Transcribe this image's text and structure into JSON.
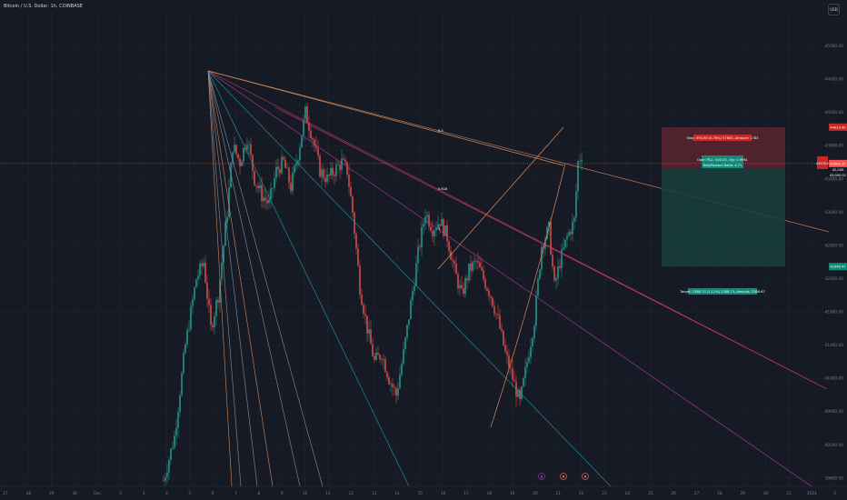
{
  "header": {
    "symbol_title": "Bitcoin / U.S. Dollar, 1h, COINBASE",
    "currency_button": "USD"
  },
  "colors": {
    "background": "#161a25",
    "up": "#26a69a",
    "down": "#ef5350",
    "grid": "#1f2431",
    "fan_gray": "#8a8f9c",
    "fan_teal": "#1ea3a8",
    "fan_orange": "#d98b56",
    "fan_pink": "#c2396b",
    "fan_magenta": "#b040a0",
    "stop_zone": "#5a2430",
    "target_zone": "#17403d"
  },
  "chart_data": {
    "type": "candlestick",
    "y_axis": {
      "range": [
        39700,
        45400
      ],
      "ticks": [
        "45000.00",
        "44600.00",
        "44200.00",
        "43800.00",
        "43400.00",
        "43000.00",
        "42600.00",
        "42200.00",
        "41800.00",
        "41400.00",
        "41000.00",
        "40600.00",
        "40200.00",
        "39800.00"
      ]
    },
    "x_axis": {
      "ticks": [
        "27",
        "28",
        "29",
        "30",
        "Dec",
        "2",
        "3",
        "4",
        "5",
        "6",
        "7",
        "8",
        "9",
        "10",
        "11",
        "12",
        "13",
        "14",
        "15",
        "16",
        "17",
        "18",
        "19",
        "20",
        "21",
        "22",
        "23",
        "24",
        "25",
        "26",
        "27",
        "28",
        "29",
        "30",
        "31",
        "2024",
        "2"
      ]
    },
    "price_path": [
      [
        0,
        39770
      ],
      [
        6,
        40300
      ],
      [
        12,
        41400
      ],
      [
        18,
        42200
      ],
      [
        22,
        42400
      ],
      [
        26,
        41600
      ],
      [
        30,
        42000
      ],
      [
        35,
        43000
      ],
      [
        38,
        43800
      ],
      [
        42,
        43600
      ],
      [
        46,
        43900
      ],
      [
        50,
        43400
      ],
      [
        54,
        43200
      ],
      [
        58,
        43100
      ],
      [
        62,
        43500
      ],
      [
        66,
        43600
      ],
      [
        70,
        43300
      ],
      [
        74,
        43700
      ],
      [
        78,
        44200
      ],
      [
        82,
        43900
      ],
      [
        86,
        43500
      ],
      [
        90,
        43400
      ],
      [
        94,
        43500
      ],
      [
        98,
        43600
      ],
      [
        101,
        43500
      ],
      [
        104,
        43000
      ],
      [
        108,
        42100
      ],
      [
        112,
        41600
      ],
      [
        116,
        41200
      ],
      [
        120,
        41300
      ],
      [
        124,
        41000
      ],
      [
        128,
        40800
      ],
      [
        132,
        41300
      ],
      [
        136,
        41900
      ],
      [
        140,
        42500
      ],
      [
        144,
        43000
      ],
      [
        148,
        42800
      ],
      [
        152,
        42900
      ],
      [
        156,
        42700
      ],
      [
        160,
        42300
      ],
      [
        164,
        42000
      ],
      [
        168,
        42300
      ],
      [
        172,
        42400
      ],
      [
        176,
        42200
      ],
      [
        180,
        42000
      ],
      [
        184,
        41700
      ],
      [
        188,
        41300
      ],
      [
        192,
        41000
      ],
      [
        196,
        40700
      ],
      [
        200,
        41200
      ],
      [
        204,
        41700
      ],
      [
        208,
        42600
      ],
      [
        212,
        42800
      ],
      [
        215,
        42100
      ],
      [
        218,
        42400
      ],
      [
        222,
        42700
      ],
      [
        226,
        42900
      ],
      [
        228,
        43600
      ],
      [
        230,
        43700
      ]
    ],
    "current_price_label": "43585.15",
    "current_price_extra": [
      "42,000",
      "43,000.01"
    ],
    "entry_tag": "43539.0",
    "stop_tag": "44023.40",
    "target_tag": "42346.47",
    "stop_price_label": "44023.40",
    "target_price_label": "42346.47",
    "fan_labels": [
      "0.5",
      "0.618",
      "1"
    ],
    "position": {
      "stop_text": "Stop: 593.98 (0.78%) 57600, Amount: 1783",
      "open_text_1": "Open P&L: 400.03, Qty: 0.9961",
      "open_text_2": "Risk/Reward Ratio: 4.71",
      "target_text": "Target: 2388.73 (1.12%) 2388.73, Amount: 2388.67"
    },
    "event_icons": [
      "C",
      "R",
      "R"
    ]
  }
}
